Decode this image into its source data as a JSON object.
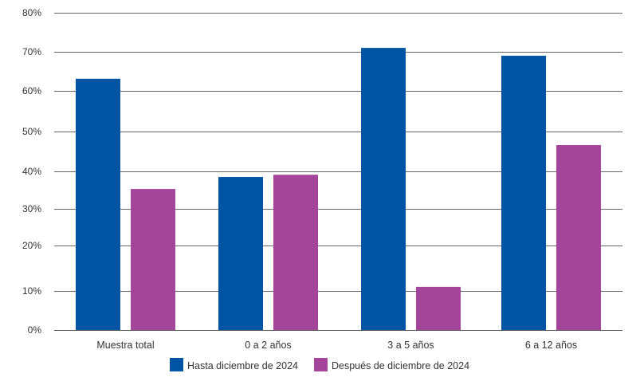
{
  "chart_data": {
    "type": "bar",
    "title": "",
    "xlabel": "",
    "ylabel": "",
    "ylim": [
      0,
      80
    ],
    "yticks": [
      "0%",
      "10%",
      "20%",
      "30%",
      "40%",
      "50%",
      "60%",
      "70%",
      "80%"
    ],
    "grid": true,
    "legend_position": "bottom",
    "categories": [
      "Muestra total",
      "0 a 2 años",
      "3 a 5 años",
      "6 a 12 años"
    ],
    "series": [
      {
        "name": "Hasta diciembre de 2024",
        "color": "#0054a4",
        "values": [
          63.1,
          38.5,
          71.0,
          69.0
        ]
      },
      {
        "name": "Después de diciembre de 2024",
        "color": "#a4449a",
        "values": [
          35.3,
          39.1,
          10.9,
          46.6
        ]
      }
    ]
  }
}
